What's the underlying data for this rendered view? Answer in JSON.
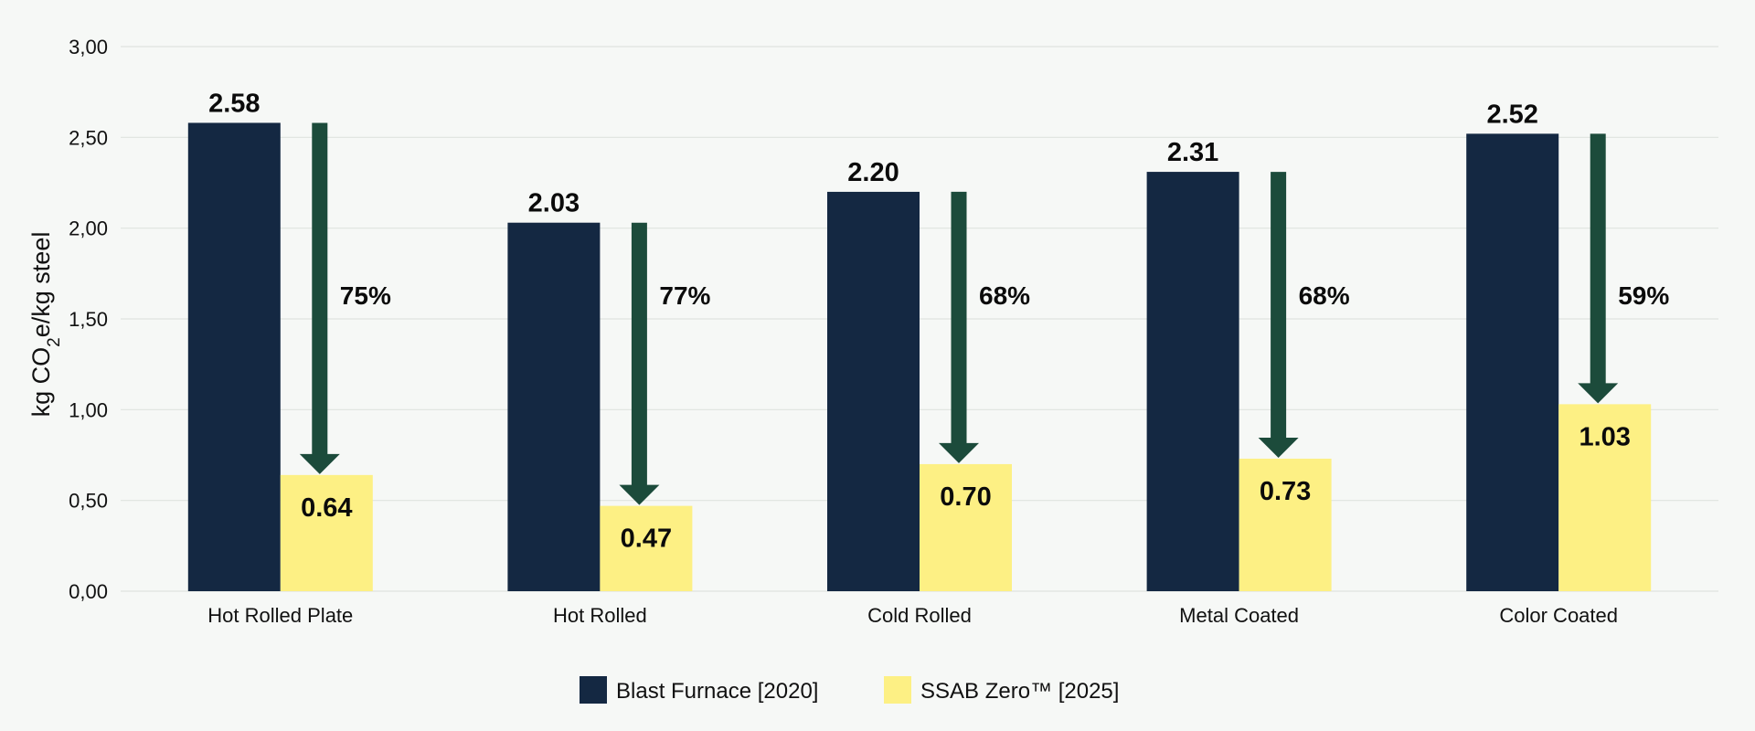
{
  "chart_data": {
    "type": "bar",
    "title": "",
    "xlabel": "",
    "ylabel": "kg CO₂e/kg steel",
    "ylabel_parts": {
      "before": "kg CO",
      "subscript": "2",
      "after": "e/kg steel"
    },
    "ylim": [
      0,
      3
    ],
    "yticks": [
      0,
      0.5,
      1,
      1.5,
      2,
      2.5,
      3
    ],
    "ytick_labels": [
      "0,00",
      "0,50",
      "1,00",
      "1,50",
      "2,00",
      "2,50",
      "3,00"
    ],
    "grid": true,
    "legend_position": "bottom-center",
    "categories": [
      "Hot Rolled Plate",
      "Hot Rolled",
      "Cold Rolled",
      "Metal Coated",
      "Color Coated"
    ],
    "series": [
      {
        "name": "Blast Furnace [2020]",
        "color": "#142842",
        "values": [
          2.58,
          2.03,
          2.2,
          2.31,
          2.52
        ],
        "value_labels": [
          "2.58",
          "2.03",
          "2.20",
          "2.31",
          "2.52"
        ]
      },
      {
        "name": "SSAB Zero™ [2025]",
        "color": "#fdf084",
        "values": [
          0.64,
          0.47,
          0.7,
          0.73,
          1.03
        ],
        "value_labels": [
          "0.64",
          "0.47",
          "0.70",
          "0.73",
          "1.03"
        ]
      }
    ],
    "reduction_labels": [
      "75%",
      "77%",
      "68%",
      "68%",
      "59%"
    ],
    "arrow_color": "#1c4b3b"
  }
}
